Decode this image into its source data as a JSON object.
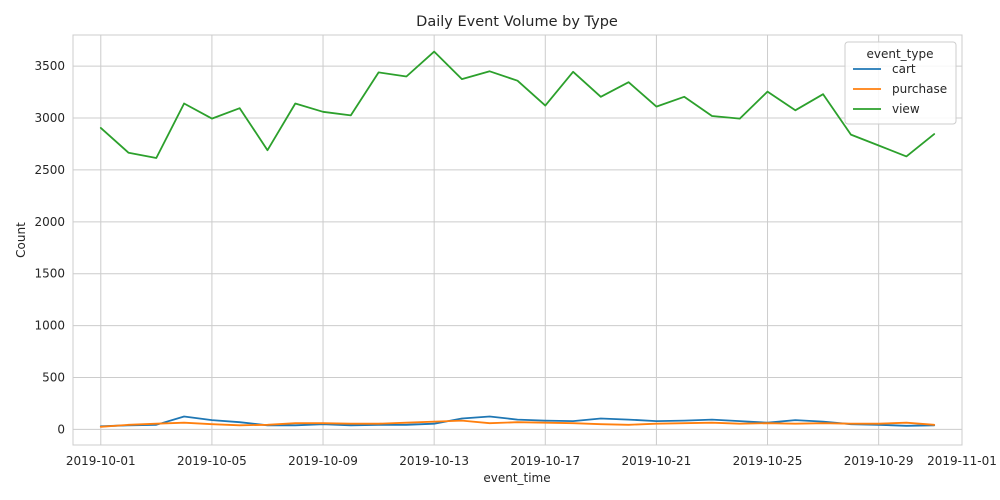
{
  "chart_data": {
    "type": "line",
    "title": "Daily Event Volume by Type",
    "xlabel": "event_time",
    "ylabel": "Count",
    "x_dates": [
      "2019-10-01",
      "2019-10-02",
      "2019-10-03",
      "2019-10-04",
      "2019-10-05",
      "2019-10-06",
      "2019-10-07",
      "2019-10-08",
      "2019-10-09",
      "2019-10-10",
      "2019-10-11",
      "2019-10-12",
      "2019-10-13",
      "2019-10-14",
      "2019-10-15",
      "2019-10-16",
      "2019-10-17",
      "2019-10-18",
      "2019-10-19",
      "2019-10-20",
      "2019-10-21",
      "2019-10-22",
      "2019-10-23",
      "2019-10-24",
      "2019-10-25",
      "2019-10-26",
      "2019-10-27",
      "2019-10-28",
      "2019-10-29",
      "2019-10-30",
      "2019-10-31"
    ],
    "x_ticks": [
      "2019-10-01",
      "2019-10-05",
      "2019-10-09",
      "2019-10-13",
      "2019-10-17",
      "2019-10-21",
      "2019-10-25",
      "2019-10-29",
      "2019-11-01"
    ],
    "xlim": [
      "2019-09-30",
      "2019-11-01"
    ],
    "y_ticks": [
      0,
      500,
      1000,
      1500,
      2000,
      2500,
      3000,
      3500
    ],
    "ylim": [
      -150,
      3800
    ],
    "grid": true,
    "legend": {
      "title": "event_type",
      "position": "top-right"
    },
    "series": [
      {
        "name": "cart",
        "color": "#1f77b4",
        "values": [
          30,
          40,
          45,
          125,
          90,
          70,
          40,
          40,
          50,
          40,
          45,
          45,
          55,
          105,
          125,
          95,
          85,
          80,
          105,
          95,
          80,
          85,
          95,
          80,
          65,
          90,
          75,
          50,
          45,
          35,
          40
        ]
      },
      {
        "name": "purchase",
        "color": "#ff7f0e",
        "values": [
          25,
          45,
          55,
          65,
          50,
          40,
          45,
          60,
          60,
          55,
          55,
          65,
          75,
          85,
          60,
          70,
          65,
          60,
          50,
          45,
          55,
          60,
          65,
          55,
          60,
          55,
          60,
          55,
          55,
          65,
          45
        ]
      },
      {
        "name": "view",
        "color": "#2ca02c",
        "values": [
          2905,
          2665,
          2615,
          3140,
          2995,
          3095,
          2690,
          3140,
          3060,
          3025,
          3440,
          3400,
          3640,
          3375,
          3450,
          3360,
          3120,
          3445,
          3205,
          3345,
          3110,
          3205,
          3020,
          2995,
          3255,
          3075,
          3230,
          2840,
          2735,
          2630,
          2845
        ]
      }
    ]
  }
}
